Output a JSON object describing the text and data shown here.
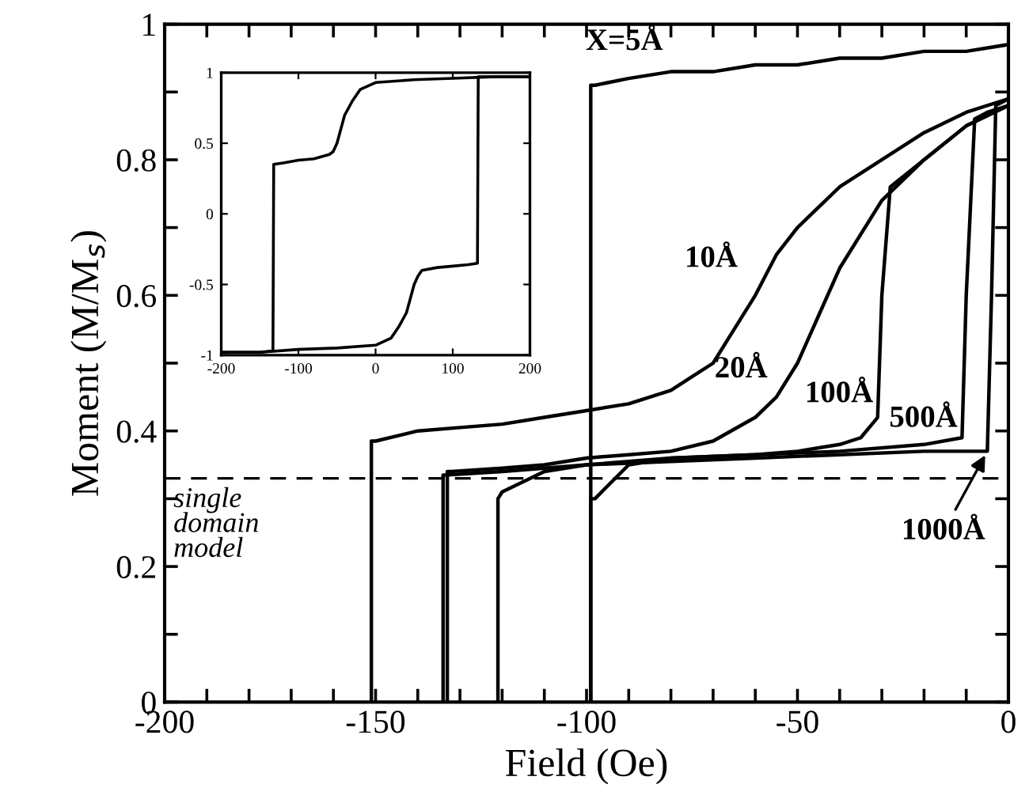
{
  "chart_data": [
    {
      "type": "line",
      "xlabel": "Field (Oe)",
      "ylabel": "Moment (M/M$_{s}$)",
      "xlim": [
        -200,
        0
      ],
      "ylim": [
        0,
        1
      ],
      "xticks": [
        -200,
        {
          "value": -190,
          "label": null
        },
        {
          "value": -180,
          "label": null
        },
        {
          "value": -170,
          "label": null
        },
        {
          "value": -160,
          "label": null
        },
        -150,
        {
          "value": -140,
          "label": null
        },
        {
          "value": -130,
          "label": null
        },
        {
          "value": -120,
          "label": null
        },
        {
          "value": -110,
          "label": null
        },
        -100,
        {
          "value": -90,
          "label": null
        },
        {
          "value": -80,
          "label": null
        },
        {
          "value": -70,
          "label": null
        },
        {
          "value": -60,
          "label": null
        },
        -50,
        {
          "value": -40,
          "label": null
        },
        {
          "value": -30,
          "label": null
        },
        {
          "value": -20,
          "label": null
        },
        {
          "value": -10,
          "label": null
        },
        0
      ],
      "yticks": [
        0,
        {
          "value": 0.1,
          "label": null
        },
        0.2,
        {
          "value": 0.3,
          "label": null
        },
        0.4,
        {
          "value": 0.5,
          "label": null
        },
        0.6,
        {
          "value": 0.7,
          "label": null
        },
        0.8,
        {
          "value": 0.9,
          "label": null
        },
        1
      ],
      "grid": false,
      "marker": "none",
      "line_style": "solid",
      "series": [
        {
          "color": "#000000",
          "x": [
            0,
            -10,
            -20,
            -30,
            -40,
            -50,
            -60,
            -70,
            -80,
            -90,
            -98,
            -99,
            -99
          ],
          "values": [
            0.97,
            0.96,
            0.96,
            0.95,
            0.95,
            0.94,
            0.94,
            0.93,
            0.93,
            0.92,
            0.91,
            0.91,
            0
          ]
        },
        {
          "color": "#000000",
          "x": [
            0,
            -10,
            -20,
            -30,
            -40,
            -50,
            -55,
            -60,
            -65,
            -70,
            -75,
            -80,
            -90,
            -100,
            -110,
            -120,
            -130,
            -140,
            -150,
            -151,
            -151
          ],
          "values": [
            0.89,
            0.87,
            0.84,
            0.8,
            0.76,
            0.7,
            0.66,
            0.6,
            0.55,
            0.5,
            0.48,
            0.46,
            0.44,
            0.43,
            0.42,
            0.41,
            0.405,
            0.4,
            0.385,
            0.385,
            0
          ]
        },
        {
          "color": "#000000",
          "x": [
            0,
            -10,
            -20,
            -30,
            -40,
            -45,
            -50,
            -55,
            -60,
            -70,
            -80,
            -90,
            -100,
            -110,
            -120,
            -132,
            -133,
            -133
          ],
          "values": [
            0.88,
            0.85,
            0.8,
            0.74,
            0.64,
            0.57,
            0.5,
            0.45,
            0.42,
            0.385,
            0.37,
            0.365,
            0.36,
            0.35,
            0.345,
            0.34,
            0.34,
            0
          ]
        },
        {
          "color": "#000000",
          "x": [
            0,
            -10,
            -20,
            -28,
            -30,
            -31,
            -35,
            -40,
            -50,
            -60,
            -80,
            -100,
            -110,
            -120,
            -121,
            -121
          ],
          "values": [
            0.88,
            0.85,
            0.8,
            0.76,
            0.6,
            0.42,
            0.39,
            0.38,
            0.37,
            0.365,
            0.36,
            0.35,
            0.34,
            0.31,
            0.3,
            0
          ]
        },
        {
          "color": "#000000",
          "x": [
            0,
            -5,
            -8,
            -10,
            -11,
            -20,
            -40,
            -60,
            -80,
            -90,
            -98,
            -99,
            -99
          ],
          "values": [
            0.88,
            0.87,
            0.86,
            0.6,
            0.39,
            0.38,
            0.37,
            0.365,
            0.36,
            0.35,
            0.3,
            0.3,
            0
          ]
        },
        {
          "color": "#000000",
          "x": [
            0,
            -3,
            -4,
            -5,
            -20,
            -40,
            -60,
            -80,
            -100,
            -120,
            -133,
            -134,
            -134
          ],
          "values": [
            0.89,
            0.88,
            0.6,
            0.37,
            0.37,
            0.365,
            0.36,
            0.355,
            0.35,
            0.34,
            0.335,
            0.335,
            0
          ]
        }
      ],
      "ref_lines": [
        {
          "axis": "y",
          "value": 0.33,
          "label": "single\ndomain\nmodel",
          "color": "#000000",
          "line_style": "dashed"
        }
      ],
      "annotations": [
        {
          "text": "X=5Å",
          "x": -90,
          "y": 0.92
        },
        {
          "text": "10Å",
          "x": -60,
          "y": 0.6
        },
        {
          "text": "20Å",
          "x": -55,
          "y": 0.45
        },
        {
          "text": "100Å",
          "x": -31,
          "y": 0.42
        },
        {
          "text": "500Å",
          "x": -11,
          "y": 0.39
        },
        {
          "text": "1000Å",
          "x": -5,
          "y": 0.37
        }
      ]
    },
    {
      "type": "line",
      "xlim": [
        -200,
        200
      ],
      "ylim": [
        -1,
        1
      ],
      "xticks": [
        -200,
        -100,
        0,
        100,
        200
      ],
      "yticks": [
        -1,
        -0.5,
        0,
        0.5,
        1
      ],
      "grid": false,
      "marker": "none",
      "line_style": "solid",
      "series": [
        {
          "color": "#000000",
          "x": [
            200,
            150,
            100,
            50,
            0,
            -20,
            -30,
            -40,
            -50,
            -55,
            -60,
            -80,
            -100,
            -120,
            -132,
            -133,
            -150,
            -200
          ],
          "values": [
            0.97,
            0.97,
            0.96,
            0.95,
            0.93,
            0.88,
            0.8,
            0.7,
            0.5,
            0.44,
            0.42,
            0.39,
            0.38,
            0.36,
            0.35,
            -0.97,
            -0.98,
            -0.98
          ]
        },
        {
          "color": "#000000",
          "x": [
            -200,
            -150,
            -100,
            -50,
            0,
            20,
            30,
            40,
            50,
            55,
            60,
            80,
            100,
            120,
            132,
            133,
            150,
            200
          ],
          "values": [
            -0.98,
            -0.98,
            -0.96,
            -0.95,
            -0.93,
            -0.88,
            -0.8,
            -0.7,
            -0.5,
            -0.44,
            -0.4,
            -0.38,
            -0.37,
            -0.36,
            -0.35,
            0.97,
            0.97,
            0.97
          ]
        }
      ]
    }
  ]
}
